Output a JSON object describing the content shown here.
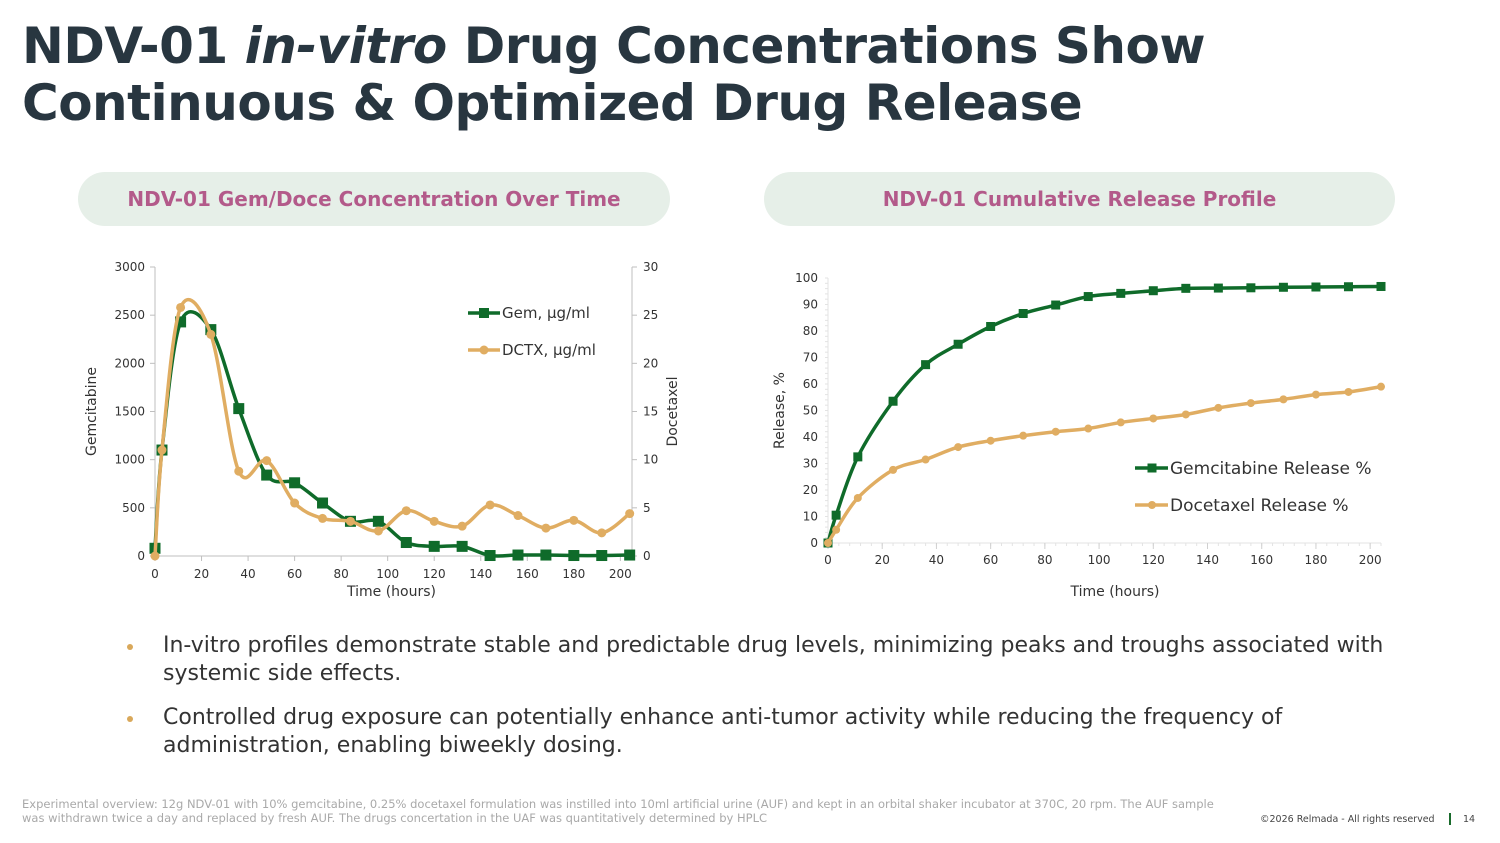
{
  "slide": {
    "title_part1": "NDV-01 ",
    "title_italic": "in-vitro",
    "title_part2": " Drug Concentrations Show",
    "title_line2": "Continuous & Optimized Drug Release",
    "left_panel_title": "NDV-01 Gem/Doce Concentration Over Time",
    "right_panel_title": "NDV-01 Cumulative Release Profile",
    "bullets": [
      "In-vitro profiles demonstrate stable and predictable drug levels, minimizing peaks and troughs associated with systemic side effects.",
      "Controlled drug exposure can potentially enhance anti-tumor activity while reducing the frequency of administration, enabling biweekly dosing."
    ],
    "footnote": "Experimental overview: 12g NDV-01 with 10% gemcitabine, 0.25% docetaxel formulation was instilled into 10ml artificial urine (AUF) and kept in an orbital shaker incubator at 370C, 20 rpm. The AUF sample was withdrawn twice a day and replaced by fresh AUF. The drugs concertation in the UAF was quantitatively determined by HPLC",
    "copyright": "©2026 Relmada - All rights reserved",
    "page_number": "14"
  },
  "colors": {
    "gem": "#0f6b2a",
    "doce": "#e0ad62",
    "title": "#283640",
    "pill_bg": "#e6efe8",
    "pill_text": "#b35a8a"
  },
  "chart_data": [
    {
      "type": "line",
      "title": "NDV-01 Gem/Doce Concentration Over Time",
      "xlabel": "Time (hours)",
      "ylabel": "Gemcitabine",
      "y2label": "Docetaxel",
      "xlim": [
        0,
        205
      ],
      "ylim": [
        0,
        3000
      ],
      "y2lim": [
        0,
        30
      ],
      "xticks": [
        0,
        20,
        40,
        60,
        80,
        100,
        120,
        140,
        160,
        180,
        200
      ],
      "yticks": [
        0,
        500,
        1000,
        1500,
        2000,
        2500,
        3000
      ],
      "y2ticks": [
        0,
        5,
        10,
        15,
        20,
        25,
        30
      ],
      "legend_position": "top-right",
      "x": [
        0,
        3,
        11,
        24,
        36,
        48,
        60,
        72,
        84,
        96,
        108,
        120,
        132,
        144,
        156,
        168,
        180,
        192,
        204
      ],
      "series": [
        {
          "name": "Gem, µg/ml",
          "axis": "left",
          "marker": "square",
          "values": [
            80,
            1100,
            2430,
            2350,
            1530,
            840,
            760,
            550,
            360,
            360,
            140,
            100,
            100,
            5,
            10,
            10,
            5,
            5,
            10
          ]
        },
        {
          "name": "DCTX, µg/ml",
          "axis": "right",
          "marker": "circle",
          "values": [
            0,
            11,
            25.8,
            23,
            8.8,
            9.9,
            5.5,
            3.9,
            3.6,
            2.6,
            4.7,
            3.6,
            3.1,
            5.3,
            4.2,
            2.9,
            3.7,
            2.4,
            4.4
          ]
        }
      ]
    },
    {
      "type": "line",
      "title": "NDV-01 Cumulative Release Profile",
      "xlabel": "Time (hours)",
      "ylabel": "Release,  %",
      "xlim": [
        0,
        204
      ],
      "ylim": [
        0,
        100
      ],
      "xticks": [
        0,
        20,
        40,
        60,
        80,
        100,
        120,
        140,
        160,
        180,
        200
      ],
      "yticks": [
        0,
        10,
        20,
        30,
        40,
        50,
        60,
        70,
        80,
        90,
        100
      ],
      "legend_position": "bottom-right",
      "x": [
        0,
        3,
        11,
        24,
        36,
        48,
        60,
        72,
        84,
        96,
        108,
        120,
        132,
        144,
        156,
        168,
        180,
        192,
        204
      ],
      "series": [
        {
          "name": "Gemcitabine Release %",
          "marker": "square",
          "values": [
            0,
            10.5,
            32.5,
            53.5,
            67.3,
            75,
            81.7,
            86.6,
            89.8,
            93,
            94.2,
            95.2,
            96.1,
            96.2,
            96.3,
            96.5,
            96.6,
            96.7,
            96.8
          ]
        },
        {
          "name": "Docetaxel Release %",
          "marker": "circle",
          "values": [
            0,
            5,
            17,
            27.6,
            31.5,
            36.2,
            38.6,
            40.5,
            42,
            43.2,
            45.5,
            47,
            48.5,
            51,
            52.8,
            54.2,
            56,
            57,
            59
          ]
        }
      ]
    }
  ]
}
